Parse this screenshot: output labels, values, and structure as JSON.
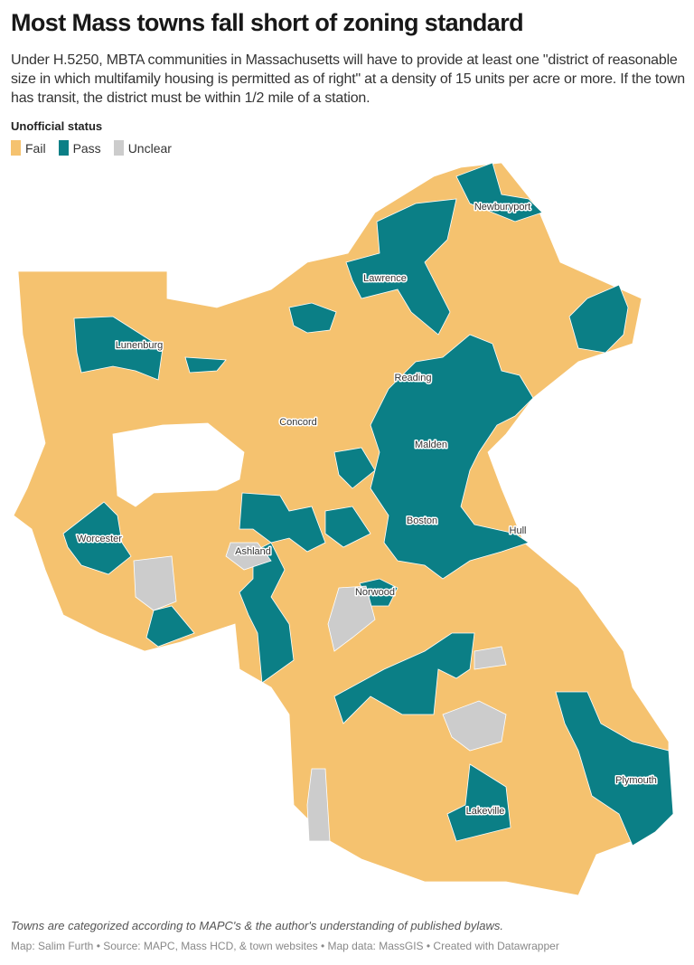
{
  "title": "Most Mass towns fall short of zoning standard",
  "subtitle": "Under H.5250, MBTA communities in Massachusetts will have to provide at least one \"district of reasonable size in which multifamily housing is permitted as of right\" at a density of 15 units per acre or more. If the town has transit, the district must be within 1/2 mile of a station.",
  "legend": {
    "title": "Unofficial status",
    "items": [
      {
        "label": "Fail",
        "color": "#f5c26f"
      },
      {
        "label": "Pass",
        "color": "#0b7f86"
      },
      {
        "label": "Unclear",
        "color": "#cccccc"
      }
    ]
  },
  "town_labels": [
    "Newburyport",
    "Lawrence",
    "Lunenburg",
    "Reading",
    "Concord",
    "Malden",
    "Worcester",
    "Ashland",
    "Boston",
    "Hull",
    "Norwood",
    "Plymouth",
    "Lakeville"
  ],
  "note": "Towns are categorized according to MAPC's & the author's understanding of published bylaws.",
  "footer": "Map: Salim Furth • Source: MAPC, Mass HCD, & town websites • Map data: MassGIS • Created with Datawrapper"
}
